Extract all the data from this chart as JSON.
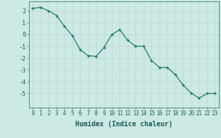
{
  "x": [
    0,
    1,
    2,
    3,
    4,
    5,
    6,
    7,
    8,
    9,
    10,
    11,
    12,
    13,
    14,
    15,
    16,
    17,
    18,
    19,
    20,
    21,
    22,
    23
  ],
  "y": [
    2.2,
    2.3,
    2.0,
    1.6,
    0.7,
    -0.1,
    -1.3,
    -1.8,
    -1.85,
    -1.1,
    0.0,
    0.4,
    -0.5,
    -1.0,
    -1.0,
    -2.2,
    -2.8,
    -2.8,
    -3.4,
    -4.3,
    -4.95,
    -5.4,
    -5.0,
    -5.0
  ],
  "line_color": "#1a7a6e",
  "marker": "+",
  "marker_size": 3,
  "xlabel": "Humidex (Indice chaleur)",
  "xlim": [
    -0.5,
    23.5
  ],
  "ylim": [
    -6.2,
    2.8
  ],
  "yticks": [
    2,
    1,
    0,
    -1,
    -2,
    -3,
    -4,
    -5
  ],
  "xticks": [
    0,
    1,
    2,
    3,
    4,
    5,
    6,
    7,
    8,
    9,
    10,
    11,
    12,
    13,
    14,
    15,
    16,
    17,
    18,
    19,
    20,
    21,
    22,
    23
  ],
  "bg_color": "#cce9e3",
  "grid_major_color": "#c0d8d2",
  "grid_minor_color": "#d8eeea",
  "spine_color": "#4a8a80",
  "font_color": "#1a5c55",
  "tick_label_size": 5.5,
  "xlabel_size": 7.0
}
